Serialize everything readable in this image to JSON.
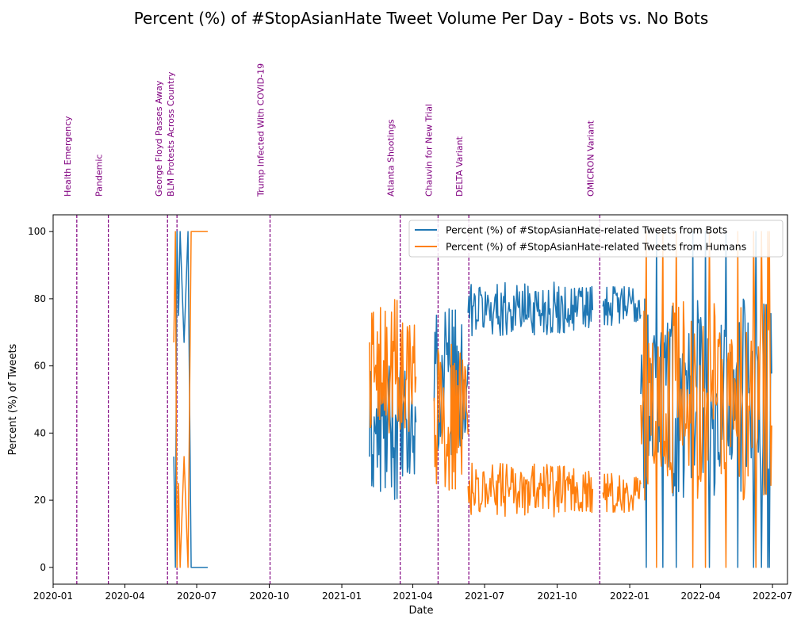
{
  "chart_data": {
    "type": "line",
    "title": "Percent (%) of #StopAsianHate Tweet Volume Per Day - Bots vs. No Bots",
    "xlabel": "Date",
    "ylabel": "Percent (%) of Tweets",
    "xlim": [
      "2020-01-01",
      "2022-07-20"
    ],
    "ylim": [
      -5,
      105
    ],
    "x_ticks": [
      "2020-01",
      "2020-04",
      "2020-07",
      "2020-10",
      "2021-01",
      "2021-04",
      "2021-07",
      "2021-10",
      "2022-01",
      "2022-04",
      "2022-07"
    ],
    "y_ticks": [
      0,
      20,
      40,
      60,
      80,
      100
    ],
    "grid": false,
    "legend_position": "top-right",
    "events": [
      {
        "date": "2020-01-31",
        "label": "Health Emergency"
      },
      {
        "date": "2020-03-11",
        "label": "Pandemic"
      },
      {
        "date": "2020-05-25",
        "label": "George Floyd Passes Away"
      },
      {
        "date": "2020-06-06",
        "label": "BLM Protests Across Country"
      },
      {
        "date": "2020-10-02",
        "label": "Trump Infected With COVID-19"
      },
      {
        "date": "2021-03-16",
        "label": "Atlanta Shootings"
      },
      {
        "date": "2021-05-03",
        "label": "Chauvin for New Trial"
      },
      {
        "date": "2021-06-11",
        "label": "DELTA Variant"
      },
      {
        "date": "2021-11-24",
        "label": "OMICRON Variant"
      }
    ],
    "event_color": "#800080",
    "series": [
      {
        "name": "Percent (%) of #StopAsianHate-related Tweets from Bots",
        "color": "#1f77b4"
      },
      {
        "name": "Percent (%) of #StopAsianHate-related Tweets from Humans",
        "color": "#ff7f0e"
      }
    ],
    "segments": [
      {
        "from": "2020-06-01",
        "to": "2020-07-20",
        "pattern": "extreme",
        "days": [
          {
            "date": "2020-06-02",
            "bots": 33,
            "humans": 67
          },
          {
            "date": "2020-06-04",
            "bots": 0,
            "humans": 100
          },
          {
            "date": "2020-06-06",
            "bots": 100,
            "humans": 0
          },
          {
            "date": "2020-06-08",
            "bots": 75,
            "humans": 25
          },
          {
            "date": "2020-06-10",
            "bots": 100,
            "humans": 0
          },
          {
            "date": "2020-06-15",
            "bots": 67,
            "humans": 33
          },
          {
            "date": "2020-06-20",
            "bots": 100,
            "humans": 0
          },
          {
            "date": "2020-06-24",
            "bots": 0,
            "humans": 100
          },
          {
            "date": "2020-07-15",
            "bots": 0,
            "humans": 100
          }
        ]
      },
      {
        "from": "2021-02-05",
        "to": "2021-04-05",
        "bots_mean": 40,
        "bots_spread": 20,
        "note": "bots mostly 20-60, humans mostly 40-100 early"
      },
      {
        "from": "2021-04-28",
        "to": "2021-06-10",
        "bots_mean": 55,
        "bots_spread": 22
      },
      {
        "from": "2021-06-10",
        "to": "2021-11-15",
        "bots_mean": 77,
        "bots_spread": 8
      },
      {
        "from": "2021-11-28",
        "to": "2022-01-15",
        "bots_mean": 78,
        "bots_spread": 6
      },
      {
        "from": "2022-01-15",
        "to": "2022-06-30",
        "bots_mean": 50,
        "bots_spread": 30,
        "note": "very volatile, frequent 0 and 100 extremes"
      }
    ],
    "summary": {
      "bots_range": [
        0,
        100
      ],
      "humans_range": [
        0,
        100
      ],
      "humans_equals": "100 - bots"
    }
  }
}
